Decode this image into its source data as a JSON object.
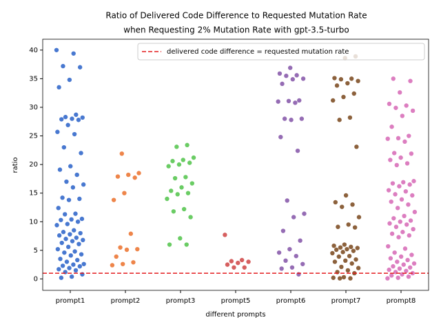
{
  "chart_data": {
    "type": "strip",
    "title": [
      "Ratio of Delivered Code Difference to Requested Mutation Rate",
      "when Requesting 2% Mutation Rate with gpt-3.5-turbo"
    ],
    "xlabel": "different prompts",
    "ylabel": "ratio",
    "categories": [
      "prompt1",
      "prompt2",
      "prompt3",
      "prompt5",
      "prompt6",
      "prompt7",
      "prompt8"
    ],
    "colors": [
      "#4878d0",
      "#ee854a",
      "#6acc64",
      "#d65f5f",
      "#956cb4",
      "#8c613c",
      "#dc7ec0"
    ],
    "values": [
      [
        40,
        39.4,
        37.2,
        37,
        34.8,
        33.5,
        28.7,
        28.3,
        28.2,
        28,
        27.9,
        27.8,
        26.9,
        25.7,
        25.3,
        23,
        22,
        19.7,
        19.1,
        18.2,
        17,
        16.5,
        16,
        14.2,
        14,
        13.8,
        12.4,
        11.4,
        11.3,
        10.5,
        10.4,
        10.3,
        10,
        9.6,
        9.4,
        8.5,
        8.2,
        8,
        7.8,
        7.6,
        7.2,
        7,
        6.8,
        6.6,
        6.3,
        6.1,
        5.6,
        5.2,
        4.8,
        4.6,
        4.3,
        4.1,
        3.5,
        3.3,
        3,
        2.6,
        2.5,
        2.3,
        2.2,
        1.9,
        1.7,
        1.5,
        1.2,
        0.8,
        0.4,
        0.2
      ],
      [
        21.9,
        18.5,
        18.2,
        17.9,
        17.7,
        15,
        13.8,
        7.9,
        5.5,
        5.2,
        5.1,
        3.9,
        2.9,
        2.6,
        2.4
      ],
      [
        23.4,
        23.1,
        21.2,
        20.8,
        20.6,
        20.3,
        20,
        19.7,
        17.8,
        17.6,
        16.7,
        16,
        15.4,
        15,
        14.8,
        14,
        12.2,
        11.8,
        10.8,
        7.1,
        6,
        6
      ],
      [
        7.7,
        3.3,
        3.1,
        3,
        2.8,
        2.5,
        2,
        2
      ],
      [
        36.9,
        35.9,
        35.6,
        35.5,
        35,
        34.9,
        34.1,
        31.2,
        31.1,
        31,
        30.8,
        28,
        28,
        27.8,
        24.8,
        22.4,
        13.7,
        11.4,
        10.8,
        8.4,
        6.7,
        5.2,
        4.6,
        4,
        3.2,
        2.6,
        2,
        1.8,
        0.8
      ],
      [
        38.9,
        38.6,
        35.1,
        35,
        34.9,
        34.6,
        34.2,
        33.8,
        32.4,
        31.8,
        31.2,
        28.2,
        27.8,
        23.1,
        14.6,
        13.4,
        13,
        12.6,
        10.8,
        9.5,
        9.1,
        9,
        6,
        5.8,
        5.6,
        5.5,
        5.4,
        5.2,
        5.1,
        4.9,
        4.7,
        4.5,
        4,
        3.9,
        3.4,
        3.2,
        3,
        2.7,
        2.1,
        1.9,
        1.5,
        1.2,
        1,
        0.3,
        0.2,
        0.1,
        0.1
      ],
      [
        35,
        34.6,
        32.6,
        30.6,
        30.3,
        29.9,
        29.4,
        28.5,
        26.6,
        25,
        24.6,
        24.5,
        24,
        22,
        21.9,
        21.2,
        20.8,
        20.2,
        19.9,
        17.1,
        16.9,
        16.7,
        16.5,
        16.2,
        15.5,
        15.3,
        14.8,
        14.6,
        13.9,
        13.5,
        13,
        12.4,
        11.7,
        11,
        10.6,
        10.2,
        10,
        9.7,
        9.5,
        9.1,
        8.7,
        8.2,
        7.9,
        7.6,
        7.3,
        5.7,
        5.3,
        4.6,
        4.2,
        3.9,
        3.6,
        3.3,
        3,
        2.7,
        2.5,
        2.2,
        2,
        1.8,
        1.6,
        1.4,
        1.2,
        1,
        0.8,
        0.6,
        0.4,
        0.2,
        0.1
      ]
    ],
    "ylim": [
      -1.995,
      41.9
    ],
    "yticks": [
      0,
      5,
      10,
      15,
      20,
      25,
      30,
      35,
      40
    ],
    "reference_line": {
      "value": 1,
      "label": "delivered code difference = requested mutation rate",
      "color": "#e41a1c"
    },
    "legend": "upper right"
  }
}
